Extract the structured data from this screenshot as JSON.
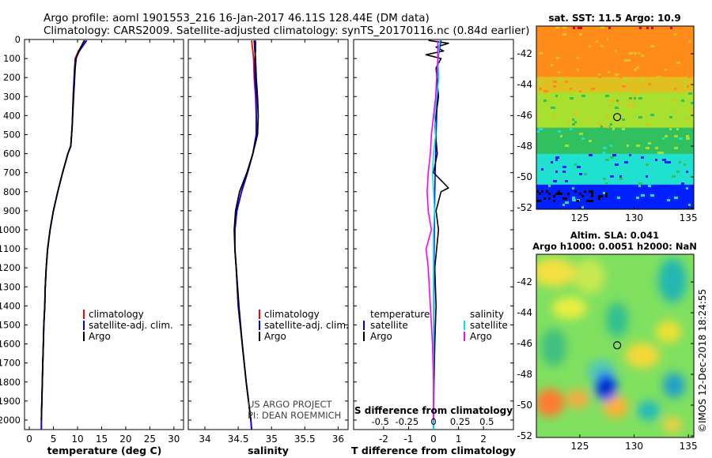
{
  "header": {
    "line1": "Argo profile: aoml 1901553_216 16-Jan-2017 46.11S 128.44E (DM data)",
    "line2": "Climatology: CARS2009. Satellite-adjusted climatology: synTS_20170116.nc (0.84d earlier)"
  },
  "depth_ticks": [
    "0",
    "100",
    "200",
    "300",
    "400",
    "500",
    "600",
    "700",
    "800",
    "900",
    "1000",
    "1100",
    "1200",
    "1300",
    "1400",
    "1500",
    "1600",
    "1700",
    "1800",
    "1900",
    "2000"
  ],
  "credits": {
    "line1": "US ARGO PROJECT",
    "line2": "PI: DEAN ROEMMICH"
  },
  "timestamp": "©IMOS 12-Dec-2018 18:24:55",
  "colors": {
    "climatology": "#ff0000",
    "satellite": "#0000ff",
    "argo": "#000000",
    "sat_salinity": "#00e5e5",
    "argo_salinity": "#ff00ff"
  },
  "chart_data": [
    {
      "type": "line",
      "id": "temperature",
      "xlabel": "temperature (deg C)",
      "ylabel": "depth",
      "xlim": [
        -1,
        32
      ],
      "ylim": [
        2050,
        0
      ],
      "xticks": [
        "0",
        "5",
        "10",
        "15",
        "20",
        "25",
        "30"
      ],
      "xtick_values": [
        0,
        5,
        10,
        15,
        20,
        25,
        30
      ],
      "legend": {
        "placement": "bottom-center",
        "entries": [
          "climatology",
          "satellite-adj. clim.",
          "Argo"
        ]
      },
      "series": [
        {
          "name": "climatology",
          "depth": [
            5,
            20,
            60,
            100,
            150,
            300,
            450,
            560,
            600,
            700,
            800,
            900,
            1000,
            1100,
            1200,
            1300,
            1400,
            1500,
            1600,
            1700,
            1800,
            1900,
            2000,
            2050
          ],
          "values": [
            11.6,
            11.2,
            10.2,
            9.5,
            9.4,
            9.1,
            8.9,
            8.6,
            8.0,
            6.9,
            5.9,
            5.0,
            4.3,
            3.8,
            3.5,
            3.3,
            3.2,
            3.0,
            2.9,
            2.8,
            2.7,
            2.6,
            2.5,
            2.5
          ]
        },
        {
          "name": "satellite-adj. clim.",
          "depth": [
            5,
            20,
            60,
            100,
            150,
            300,
            450,
            560,
            600,
            700,
            800,
            900,
            1000,
            1100,
            1200,
            1300,
            1400,
            1500,
            1600,
            1700,
            1800,
            1900,
            2000,
            2050
          ],
          "values": [
            11.9,
            11.5,
            10.4,
            9.6,
            9.4,
            9.1,
            8.9,
            8.6,
            8.0,
            6.9,
            5.9,
            5.0,
            4.3,
            3.8,
            3.5,
            3.3,
            3.2,
            3.0,
            2.9,
            2.8,
            2.7,
            2.6,
            2.5,
            2.5
          ]
        },
        {
          "name": "Argo",
          "depth": [
            5,
            20,
            60,
            100,
            150,
            300,
            450,
            560,
            600,
            700,
            800,
            900,
            1000,
            1100,
            1200,
            1300,
            1400,
            1500,
            1600,
            1700,
            1800,
            1900,
            2000
          ],
          "values": [
            11.4,
            11.1,
            10.3,
            9.7,
            9.5,
            9.2,
            8.9,
            8.6,
            8.0,
            6.9,
            5.9,
            5.0,
            4.3,
            3.8,
            3.5,
            3.3,
            3.2,
            3.0,
            2.9,
            2.8,
            2.7,
            2.6,
            2.5
          ]
        }
      ]
    },
    {
      "type": "line",
      "id": "salinity",
      "xlabel": "salinity",
      "ylabel": "depth",
      "xlim": [
        33.75,
        36.15
      ],
      "ylim": [
        2050,
        0
      ],
      "xticks": [
        "34",
        "34.5",
        "35",
        "35.5",
        "36"
      ],
      "xtick_values": [
        34,
        34.5,
        35,
        35.5,
        36
      ],
      "legend": {
        "placement": "bottom-center",
        "entries": [
          "climatology",
          "satellite-adj. clim.",
          "Argo"
        ]
      },
      "series": [
        {
          "name": "climatology",
          "depth": [
            5,
            60,
            100,
            200,
            300,
            400,
            500,
            600,
            700,
            800,
            900,
            1000,
            1100,
            1200,
            1400,
            1600,
            1800,
            2000,
            2050
          ],
          "values": [
            34.7,
            34.72,
            34.73,
            34.74,
            34.76,
            34.77,
            34.77,
            34.72,
            34.64,
            34.55,
            34.48,
            34.45,
            34.45,
            34.47,
            34.5,
            34.56,
            34.62,
            34.69,
            34.7
          ]
        },
        {
          "name": "satellite-adj. clim.",
          "depth": [
            5,
            60,
            100,
            200,
            300,
            400,
            500,
            600,
            700,
            800,
            900,
            1000,
            1100,
            1200,
            1400,
            1600,
            1800,
            2000,
            2050
          ],
          "values": [
            34.76,
            34.76,
            34.75,
            34.75,
            34.77,
            34.77,
            34.77,
            34.72,
            34.64,
            34.55,
            34.48,
            34.45,
            34.45,
            34.47,
            34.5,
            34.56,
            34.62,
            34.69,
            34.7
          ]
        },
        {
          "name": "Argo",
          "depth": [
            5,
            60,
            100,
            200,
            300,
            400,
            500,
            600,
            700,
            800,
            900,
            1000,
            1100,
            1200,
            1400,
            1600,
            1800,
            2000
          ],
          "values": [
            34.74,
            34.75,
            34.76,
            34.77,
            34.79,
            34.8,
            34.79,
            34.72,
            34.63,
            34.52,
            34.46,
            34.44,
            34.45,
            34.47,
            34.51,
            34.56,
            34.62,
            34.69
          ]
        }
      ]
    },
    {
      "type": "line",
      "id": "difference",
      "xlabel": "T difference from climatology",
      "x2label": "S difference from climatology",
      "xlim": [
        -3.2,
        3.2
      ],
      "ylim": [
        2050,
        0
      ],
      "xticks": [
        "-2",
        "-1",
        "0",
        "1",
        "2"
      ],
      "xtick_values": [
        -2,
        -1,
        0,
        1,
        2
      ],
      "x2ticks": [
        "-0.5",
        "-0.25",
        "0",
        "0.25",
        "0.5"
      ],
      "x2tick_values": [
        -0.5,
        -0.25,
        0,
        0.25,
        0.5
      ],
      "legend": {
        "placement": "bottom",
        "temperature_title": "temperature",
        "salinity_title": "salinity",
        "entries": [
          "satellite",
          "Argo",
          "satellite",
          "Argo"
        ]
      },
      "series": [
        {
          "name": "T satellite",
          "depth": [
            5,
            40,
            80,
            150,
            300,
            500,
            800,
            1200,
            1600,
            2050
          ],
          "values": [
            0.3,
            0.25,
            0.2,
            0.15,
            0.15,
            0.1,
            0.05,
            0.02,
            0.01,
            0.0
          ]
        },
        {
          "name": "T Argo",
          "depth": [
            5,
            20,
            40,
            60,
            80,
            100,
            150,
            300,
            450,
            600,
            700,
            780,
            800,
            900,
            1000,
            1200,
            1400,
            1600,
            1800,
            2000
          ],
          "values": [
            -0.2,
            0.6,
            0.1,
            0.4,
            -0.3,
            0.3,
            0.1,
            0.2,
            0.05,
            0.15,
            0.0,
            0.6,
            0.3,
            0.1,
            0.2,
            0.05,
            0.1,
            0.05,
            0.02,
            0.0
          ]
        },
        {
          "name": "S satellite",
          "depth": [
            5,
            100,
            200,
            300,
            400,
            500,
            600,
            700,
            800,
            900,
            1000,
            1200,
            1400,
            1600,
            1800,
            2050
          ],
          "values": [
            0.06,
            0.04,
            0.05,
            0.03,
            0.01,
            0.02,
            0.0,
            -0.01,
            0.0,
            0.01,
            0.0,
            0.0,
            0.0,
            0.0,
            0.0,
            0.0
          ]
        },
        {
          "name": "S Argo",
          "depth": [
            5,
            100,
            200,
            300,
            400,
            500,
            600,
            700,
            800,
            900,
            1000,
            1100,
            1200,
            1400,
            1600,
            1800,
            2000
          ],
          "values": [
            0.04,
            0.04,
            0.03,
            0.02,
            0.0,
            -0.02,
            -0.03,
            -0.05,
            -0.06,
            -0.05,
            -0.02,
            -0.07,
            -0.05,
            -0.03,
            -0.01,
            0.0,
            0.0
          ]
        }
      ]
    },
    {
      "type": "heatmap",
      "id": "sst_map",
      "title": "sat. SST: 11.5 Argo: 10.9",
      "xticks": [
        "125",
        "130",
        "135"
      ],
      "xtick_values": [
        125,
        130,
        135
      ],
      "yticks": [
        "-42",
        "-44",
        "-46",
        "-48",
        "-50",
        "-52"
      ],
      "ytick_values": [
        -42,
        -44,
        -46,
        -48,
        -50,
        -52
      ],
      "xlim": [
        121,
        135.5
      ],
      "ylim": [
        -52.1,
        -40.2
      ],
      "float_position": [
        128.44,
        -46.11
      ],
      "bands": [
        {
          "lat_from": -40.2,
          "lat_to": -43.5,
          "color": "#ff8c1a"
        },
        {
          "lat_from": -43.5,
          "lat_to": -44.5,
          "color": "#e0c020"
        },
        {
          "lat_from": -44.5,
          "lat_to": -46.8,
          "color": "#a8e030"
        },
        {
          "lat_from": -46.8,
          "lat_to": -48.5,
          "color": "#30c060"
        },
        {
          "lat_from": -48.5,
          "lat_to": -50.5,
          "color": "#20e0d0"
        },
        {
          "lat_from": -50.5,
          "lat_to": -52.1,
          "color": "#0020ff"
        }
      ]
    },
    {
      "type": "heatmap",
      "id": "sla_map",
      "title": "Altim. SLA: 0.041",
      "subtitle": "Argo h1000: 0.0051 h2000: NaN",
      "xticks": [
        "125",
        "130",
        "135"
      ],
      "xtick_values": [
        125,
        130,
        135
      ],
      "yticks": [
        "-42",
        "-44",
        "-46",
        "-48",
        "-50",
        "-52"
      ],
      "ytick_values": [
        -42,
        -44,
        -46,
        -48,
        -50,
        -52
      ],
      "xlim": [
        121,
        135.5
      ],
      "ylim": [
        -52.1,
        -40.2
      ],
      "float_position": [
        128.44,
        -46.11
      ],
      "background_color": "#7fe060"
    }
  ]
}
